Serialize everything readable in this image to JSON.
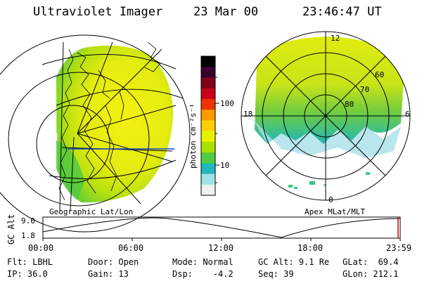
{
  "header": {
    "instrument": "Ultraviolet Imager",
    "date": "23 Mar 00",
    "time": "23:46:47 UT"
  },
  "left_map": {
    "label": "Geographic Lat/Lon"
  },
  "right_map": {
    "label": "Apex MLat/MLT",
    "mlt_labels": [
      "12",
      "18",
      "6",
      "0"
    ],
    "mlat_labels": [
      "60",
      "70",
      "80"
    ]
  },
  "colorbar": {
    "unit_label": "photon cm⁻²s⁻¹",
    "ticks": [
      "100",
      "10"
    ],
    "colors": [
      "#000000",
      "#3a0030",
      "#80001a",
      "#c8001c",
      "#ee3300",
      "#ff9900",
      "#ffd000",
      "#e8f000",
      "#a8e000",
      "#50cc40",
      "#20b8b8",
      "#a0e0e8",
      "#f0f0f0"
    ]
  },
  "altitude_plot": {
    "ylabel": "GC Alt",
    "yticks": [
      "9.0",
      "1.8"
    ],
    "xticks": [
      "00:00",
      "06:00",
      "12:00",
      "18:00",
      "23:59"
    ]
  },
  "info": {
    "flt": "Flt: LBHL",
    "ip": "IP: 36.0",
    "door": "Door: Open",
    "gain": "Gain: 13",
    "mode": "Mode: Normal",
    "dsp": "Dsp:    -4.2",
    "gcalt": "GC Alt: 9.1 Re",
    "seq": "Seq: 39",
    "glat": "GLat:  69.4",
    "glon": "GLon: 212.1"
  }
}
